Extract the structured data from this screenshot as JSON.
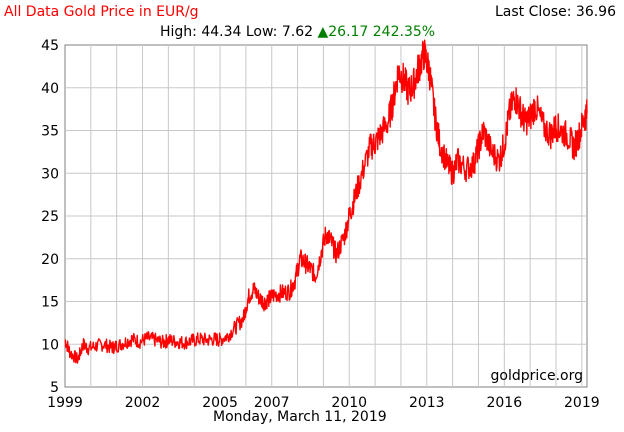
{
  "header": {
    "title": "All Data Gold Price in EUR/g",
    "last_close_label": "Last Close: 36.96",
    "high_low": "High: 44.34 Low: 7.62",
    "change_symbol": "▲",
    "change": "26.17 242.35%",
    "date": "Monday, March 11, 2019",
    "watermark": "goldprice.org"
  },
  "colors": {
    "line": "#ff0000",
    "grid": "#c8c8c8",
    "title": "#ff0000",
    "change": "#008000"
  },
  "chart_data": {
    "type": "line",
    "title": "All Data Gold Price in EUR/g",
    "xlabel": "",
    "ylabel": "",
    "xlim": [
      1999.0,
      2019.2
    ],
    "ylim": [
      5,
      45
    ],
    "x_ticks": [
      "1999",
      "2002",
      "2005",
      "2007",
      "2010",
      "2013",
      "2016",
      "2019"
    ],
    "x_tick_values": [
      1999,
      2002,
      2005,
      2007,
      2010,
      2013,
      2016,
      2019
    ],
    "y_ticks": [
      5,
      10,
      15,
      20,
      25,
      30,
      35,
      40,
      45
    ],
    "grid": true,
    "series": [
      {
        "name": "",
        "x": [
          1999.0,
          1999.2,
          1999.5,
          1999.7,
          1999.9,
          2000.2,
          2000.5,
          2000.8,
          2001.0,
          2001.3,
          2001.6,
          2001.9,
          2002.2,
          2002.5,
          2002.8,
          2003.0,
          2003.3,
          2003.6,
          2003.9,
          2004.2,
          2004.5,
          2004.8,
          2005.0,
          2005.3,
          2005.6,
          2005.9,
          2006.1,
          2006.3,
          2006.5,
          2006.7,
          2006.9,
          2007.1,
          2007.4,
          2007.7,
          2007.9,
          2008.1,
          2008.3,
          2008.5,
          2008.7,
          2008.9,
          2009.1,
          2009.3,
          2009.5,
          2009.8,
          2010.0,
          2010.2,
          2010.5,
          2010.8,
          2011.0,
          2011.2,
          2011.5,
          2011.7,
          2011.9,
          2012.1,
          2012.3,
          2012.5,
          2012.7,
          2012.9,
          2013.1,
          2013.3,
          2013.5,
          2013.8,
          2014.0,
          2014.2,
          2014.5,
          2014.8,
          2015.0,
          2015.2,
          2015.5,
          2015.8,
          2016.0,
          2016.2,
          2016.4,
          2016.6,
          2016.8,
          2017.0,
          2017.2,
          2017.5,
          2017.8,
          2018.0,
          2018.2,
          2018.5,
          2018.7,
          2018.9,
          2019.1,
          2019.2
        ],
        "y": [
          10.5,
          9.0,
          8.2,
          10.0,
          9.5,
          9.8,
          10.0,
          9.6,
          9.8,
          10.2,
          10.6,
          10.3,
          10.7,
          10.5,
          10.2,
          10.5,
          10.3,
          10.2,
          10.4,
          10.6,
          10.5,
          10.6,
          10.5,
          11.0,
          12.0,
          13.0,
          15.5,
          16.5,
          15.5,
          14.9,
          15.3,
          15.8,
          16.0,
          16.2,
          17.5,
          20.0,
          19.5,
          18.8,
          18.0,
          20.5,
          23.0,
          22.0,
          20.5,
          22.5,
          25.0,
          27.0,
          30.0,
          33.0,
          33.5,
          34.5,
          36.0,
          38.5,
          42.0,
          41.0,
          39.5,
          40.5,
          42.5,
          44.0,
          42.0,
          37.0,
          33.5,
          31.0,
          30.0,
          31.5,
          30.5,
          31.0,
          33.0,
          35.0,
          32.5,
          31.5,
          33.5,
          37.0,
          39.0,
          37.5,
          36.0,
          36.5,
          38.0,
          35.5,
          34.5,
          35.5,
          35.0,
          34.2,
          33.0,
          34.5,
          36.5,
          37.0
        ]
      }
    ]
  }
}
